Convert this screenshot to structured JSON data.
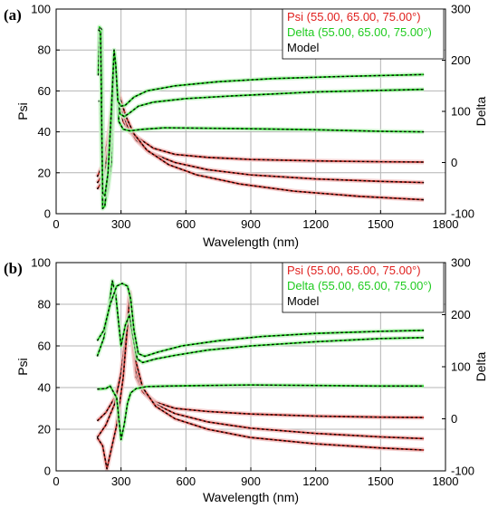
{
  "chart_data": [
    {
      "panel_label": "(a)",
      "type": "line",
      "xlabel": "Wavelength (nm)",
      "ylabel_left": "Psi",
      "ylabel_right": "Delta",
      "xlim": [
        0,
        1800
      ],
      "ylim_left": [
        0,
        100
      ],
      "ylim_right": [
        -100,
        300
      ],
      "xticks": [
        0,
        300,
        600,
        900,
        1200,
        1500,
        1800
      ],
      "yticks_left": [
        0,
        20,
        40,
        60,
        80,
        100
      ],
      "yticks_right": [
        -100,
        0,
        100,
        200,
        300
      ],
      "grid": true,
      "legend_position": "top-right",
      "legend": [
        {
          "label": "Psi (55.00, 65.00, 75.00°)",
          "color": "#e0201e"
        },
        {
          "label": "Delta (55.00, 65.00, 75.00°)",
          "color": "#1ecb1e"
        },
        {
          "label": "Model",
          "color": "#000000"
        }
      ],
      "series": [
        {
          "name": "Psi 55.00°",
          "axis": "left",
          "color": "#c0302a",
          "points": [
            [
              190,
              18
            ],
            [
              220,
              25
            ],
            [
              245,
              40
            ],
            [
              265,
              60
            ],
            [
              275,
              68
            ],
            [
              290,
              55
            ],
            [
              310,
              45
            ],
            [
              340,
              40
            ],
            [
              380,
              37
            ],
            [
              450,
              32
            ],
            [
              550,
              29
            ],
            [
              700,
              27.5
            ],
            [
              900,
              26.5
            ],
            [
              1200,
              25.8
            ],
            [
              1500,
              25.4
            ],
            [
              1700,
              25.2
            ]
          ]
        },
        {
          "name": "Psi 65.00°",
          "axis": "left",
          "color": "#c0302a",
          "points": [
            [
              190,
              15
            ],
            [
              220,
              20
            ],
            [
              245,
              35
            ],
            [
              260,
              55
            ],
            [
              272,
              67
            ],
            [
              285,
              60
            ],
            [
              305,
              50
            ],
            [
              330,
              43
            ],
            [
              370,
              36
            ],
            [
              430,
              30
            ],
            [
              550,
              25
            ],
            [
              700,
              21.5
            ],
            [
              900,
              19
            ],
            [
              1200,
              17
            ],
            [
              1500,
              15.8
            ],
            [
              1700,
              15.2
            ]
          ]
        },
        {
          "name": "Psi 75.00°",
          "axis": "left",
          "color": "#c0302a",
          "points": [
            [
              190,
              12
            ],
            [
              215,
              16
            ],
            [
              240,
              30
            ],
            [
              255,
              50
            ],
            [
              268,
              65
            ],
            [
              280,
              62
            ],
            [
              300,
              55
            ],
            [
              325,
              47
            ],
            [
              360,
              39
            ],
            [
              420,
              31
            ],
            [
              520,
              24
            ],
            [
              650,
              19
            ],
            [
              850,
              14.5
            ],
            [
              1100,
              11
            ],
            [
              1400,
              8.5
            ],
            [
              1700,
              6.8
            ]
          ]
        },
        {
          "name": "Delta 55.00°",
          "axis": "right",
          "color": "#1ecb1e",
          "points": [
            [
              195,
              170
            ],
            [
              200,
              265
            ],
            [
              210,
              260
            ],
            [
              220,
              -80
            ],
            [
              230,
              -70
            ],
            [
              240,
              -50
            ],
            [
              255,
              0
            ],
            [
              268,
              180
            ],
            [
              278,
              175
            ],
            [
              290,
              80
            ],
            [
              310,
              65
            ],
            [
              340,
              62
            ],
            [
              400,
              65
            ],
            [
              500,
              68
            ],
            [
              700,
              67
            ],
            [
              900,
              66
            ],
            [
              1200,
              64
            ],
            [
              1500,
              61
            ],
            [
              1700,
              60
            ]
          ]
        },
        {
          "name": "Delta 65.00°",
          "axis": "right",
          "color": "#1ecb1e",
          "points": [
            [
              195,
              120
            ],
            [
              205,
              120
            ],
            [
              215,
              -90
            ],
            [
              225,
              -85
            ],
            [
              240,
              -30
            ],
            [
              258,
              80
            ],
            [
              270,
              210
            ],
            [
              280,
              160
            ],
            [
              295,
              95
            ],
            [
              315,
              90
            ],
            [
              340,
              97
            ],
            [
              380,
              110
            ],
            [
              450,
              118
            ],
            [
              600,
              125
            ],
            [
              800,
              130
            ],
            [
              1000,
              134
            ],
            [
              1200,
              138
            ],
            [
              1500,
              141
            ],
            [
              1700,
              143
            ]
          ]
        },
        {
          "name": "Delta 75.00°",
          "axis": "right",
          "color": "#1ecb1e",
          "points": [
            [
              195,
              260
            ],
            [
              205,
              255
            ],
            [
              215,
              -60
            ],
            [
              225,
              -65
            ],
            [
              240,
              -20
            ],
            [
              255,
              100
            ],
            [
              268,
              220
            ],
            [
              276,
              190
            ],
            [
              285,
              120
            ],
            [
              300,
              110
            ],
            [
              320,
              112
            ],
            [
              360,
              128
            ],
            [
              420,
              140
            ],
            [
              550,
              150
            ],
            [
              750,
              158
            ],
            [
              1000,
              164
            ],
            [
              1300,
              168
            ],
            [
              1700,
              172
            ]
          ]
        }
      ]
    },
    {
      "panel_label": "(b)",
      "type": "line",
      "xlabel": "Wavelength (nm)",
      "ylabel_left": "Psi",
      "ylabel_right": "Delta",
      "xlim": [
        0,
        1800
      ],
      "ylim_left": [
        0,
        100
      ],
      "ylim_right": [
        -100,
        300
      ],
      "xticks": [
        0,
        300,
        600,
        900,
        1200,
        1500,
        1800
      ],
      "yticks_left": [
        0,
        20,
        40,
        60,
        80,
        100
      ],
      "yticks_right": [
        -100,
        0,
        100,
        200,
        300
      ],
      "grid": true,
      "legend_position": "top-right",
      "legend": [
        {
          "label": "Psi (55.00, 65.00, 75.00°)",
          "color": "#e0201e"
        },
        {
          "label": "Delta (55.00, 65.00, 75.00°)",
          "color": "#1ecb1e"
        },
        {
          "label": "Model",
          "color": "#000000"
        }
      ],
      "series": [
        {
          "name": "Psi 55.00°",
          "axis": "left",
          "color": "#c0302a",
          "points": [
            [
              190,
              24
            ],
            [
              230,
              28
            ],
            [
              270,
              35
            ],
            [
              300,
              45
            ],
            [
              320,
              58
            ],
            [
              338,
              73
            ],
            [
              350,
              65
            ],
            [
              370,
              45
            ],
            [
              400,
              38
            ],
            [
              460,
              33
            ],
            [
              550,
              30
            ],
            [
              700,
              28.5
            ],
            [
              900,
              27.3
            ],
            [
              1200,
              26.3
            ],
            [
              1500,
              25.8
            ],
            [
              1700,
              25.6
            ]
          ]
        },
        {
          "name": "Psi 65.00°",
          "axis": "left",
          "color": "#c0302a",
          "points": [
            [
              190,
              16
            ],
            [
              230,
              22
            ],
            [
              270,
              32
            ],
            [
              300,
              47
            ],
            [
              325,
              68
            ],
            [
              340,
              86
            ],
            [
              352,
              70
            ],
            [
              370,
              48
            ],
            [
              400,
              38
            ],
            [
              460,
              32
            ],
            [
              550,
              27.5
            ],
            [
              700,
              23.5
            ],
            [
              900,
              20.5
            ],
            [
              1200,
              18
            ],
            [
              1500,
              16.3
            ],
            [
              1700,
              15.5
            ]
          ]
        },
        {
          "name": "Psi 75.00°",
          "axis": "left",
          "color": "#c0302a",
          "points": [
            [
              190,
              16
            ],
            [
              215,
              12
            ],
            [
              235,
              1
            ],
            [
              250,
              8
            ],
            [
              280,
              22
            ],
            [
              310,
              45
            ],
            [
              330,
              70
            ],
            [
              342,
              85
            ],
            [
              352,
              75
            ],
            [
              370,
              52
            ],
            [
              400,
              40
            ],
            [
              460,
              31
            ],
            [
              550,
              25
            ],
            [
              700,
              20
            ],
            [
              900,
              16
            ],
            [
              1200,
              13
            ],
            [
              1500,
              11
            ],
            [
              1700,
              10
            ]
          ]
        },
        {
          "name": "Delta 55.00°",
          "axis": "right",
          "color": "#1ecb1e",
          "points": [
            [
              190,
              57
            ],
            [
              230,
              58
            ],
            [
              250,
              63
            ],
            [
              280,
              40
            ],
            [
              300,
              -40
            ],
            [
              315,
              -10
            ],
            [
              330,
              30
            ],
            [
              345,
              50
            ],
            [
              370,
              58
            ],
            [
              420,
              62
            ],
            [
              520,
              63
            ],
            [
              700,
              64
            ],
            [
              900,
              65
            ],
            [
              1200,
              64
            ],
            [
              1500,
              63
            ],
            [
              1700,
              63
            ]
          ]
        },
        {
          "name": "Delta 65.00°",
          "axis": "right",
          "color": "#1ecb1e",
          "points": [
            [
              190,
              120
            ],
            [
              220,
              155
            ],
            [
              240,
              200
            ],
            [
              260,
              265
            ],
            [
              275,
              240
            ],
            [
              290,
              180
            ],
            [
              300,
              140
            ],
            [
              320,
              180
            ],
            [
              340,
              200
            ],
            [
              355,
              160
            ],
            [
              375,
              115
            ],
            [
              400,
              108
            ],
            [
              460,
              115
            ],
            [
              550,
              122
            ],
            [
              700,
              132
            ],
            [
              900,
              140
            ],
            [
              1200,
              148
            ],
            [
              1500,
              154
            ],
            [
              1700,
              156
            ]
          ]
        },
        {
          "name": "Delta 75.00°",
          "axis": "right",
          "color": "#1ecb1e",
          "points": [
            [
              190,
              150
            ],
            [
              220,
              170
            ],
            [
              250,
              220
            ],
            [
              280,
              255
            ],
            [
              305,
              260
            ],
            [
              330,
              255
            ],
            [
              345,
              230
            ],
            [
              360,
              170
            ],
            [
              380,
              125
            ],
            [
              410,
              120
            ],
            [
              470,
              128
            ],
            [
              580,
              140
            ],
            [
              750,
              150
            ],
            [
              950,
              158
            ],
            [
              1200,
              164
            ],
            [
              1500,
              168
            ],
            [
              1700,
              170
            ]
          ]
        }
      ]
    }
  ]
}
